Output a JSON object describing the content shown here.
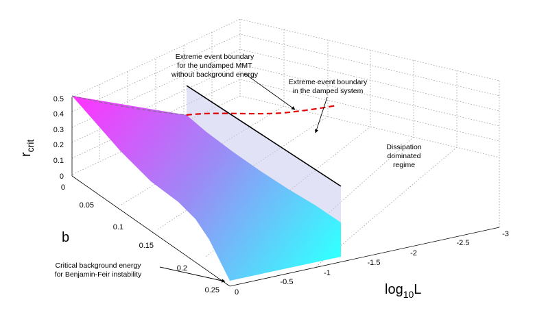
{
  "chart_data": {
    "type": "surface3d",
    "title": "",
    "zlabel": {
      "main": "r",
      "sub": "crit"
    },
    "ylabel": "b",
    "xlabel": {
      "main": "log",
      "sub": "10",
      "tail": "L"
    },
    "z_ticks": [
      "0",
      "0.1",
      "0.2",
      "0.3",
      "0.4",
      "0.5"
    ],
    "b_ticks": [
      "0",
      "0.05",
      "0.1",
      "0.15",
      "0.2",
      "0.25"
    ],
    "logL_ticks": [
      "0",
      "-0.5",
      "-1",
      "-1.5",
      "-2",
      "-2.5",
      "-3"
    ],
    "zlim": [
      0,
      0.5
    ],
    "blim": [
      0,
      0.25
    ],
    "logLlim": [
      -3,
      0
    ],
    "grid": true,
    "surface": {
      "name": "r_crit(b, log10 L)",
      "colormap": [
        "#ff33ff",
        "#33ffff"
      ],
      "edge_b0": [
        {
          "logL": 0,
          "r": 0.5
        },
        {
          "logL": -0.5,
          "r": 0.44
        },
        {
          "logL": -1,
          "r": 0.4
        }
      ],
      "edge_L0": [
        {
          "b": 0,
          "r": 0.5
        },
        {
          "b": 0.1,
          "r": 0.3
        },
        {
          "b": 0.2,
          "r": 0.11
        },
        {
          "b": 0.25,
          "r": 0
        }
      ]
    },
    "undamped_boundary": {
      "logL": -1,
      "style": "solid black line"
    },
    "damped_boundary": {
      "style": "dashed red",
      "points": [
        {
          "logL": -1.0,
          "r": 0.4
        },
        {
          "logL": -1.5,
          "r": 0.39
        },
        {
          "logL": -2.0,
          "r": 0.39
        },
        {
          "logL": -2.5,
          "r": 0.41
        },
        {
          "logL": -3.0,
          "r": 0.44
        }
      ]
    },
    "annotations": [
      {
        "lines": [
          "Extreme event boundary",
          "for the undamped MMT",
          "without background energy"
        ]
      },
      {
        "lines": [
          "Extreme event boundary",
          "in the damped system"
        ]
      },
      {
        "lines": [
          "Dissipation",
          "dominated",
          "regime"
        ]
      },
      {
        "lines": [
          "Critical background energy",
          "for Benjamin-Feir instability"
        ]
      }
    ]
  }
}
